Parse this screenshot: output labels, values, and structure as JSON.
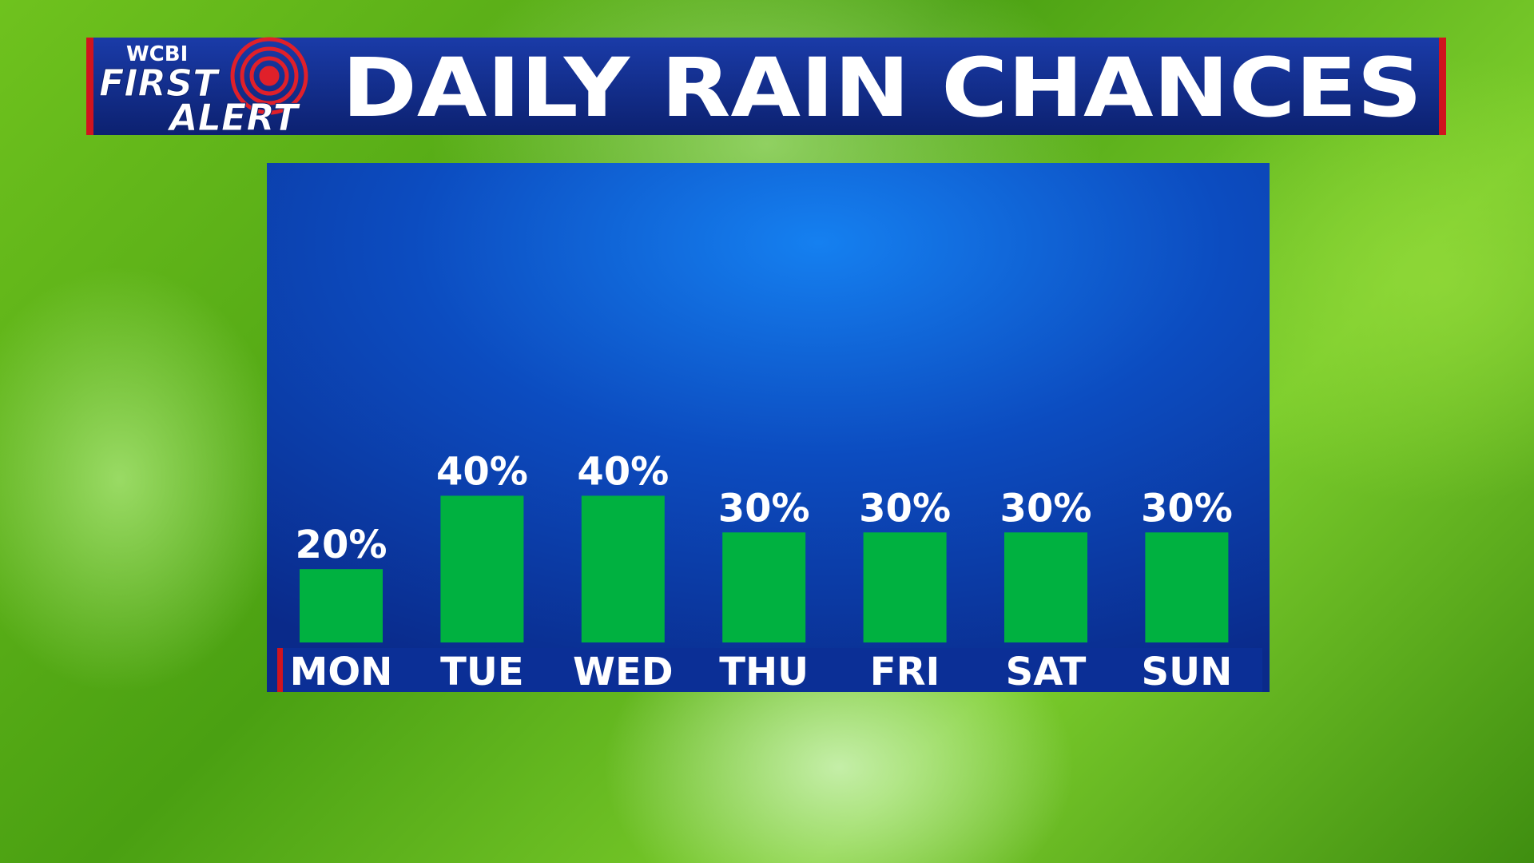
{
  "chart_data": {
    "type": "bar",
    "title": "DAILY RAIN CHANCES",
    "logo": {
      "station": "WCBI",
      "line1": "FIRST",
      "line2": "ALERT"
    },
    "categories": [
      "MON",
      "TUE",
      "WED",
      "THU",
      "FRI",
      "SAT",
      "SUN"
    ],
    "values": [
      20,
      40,
      40,
      30,
      30,
      30,
      30
    ],
    "value_labels": [
      "20%",
      "40%",
      "40%",
      "30%",
      "30%",
      "30%",
      "30%"
    ],
    "color": "#00b140"
  }
}
